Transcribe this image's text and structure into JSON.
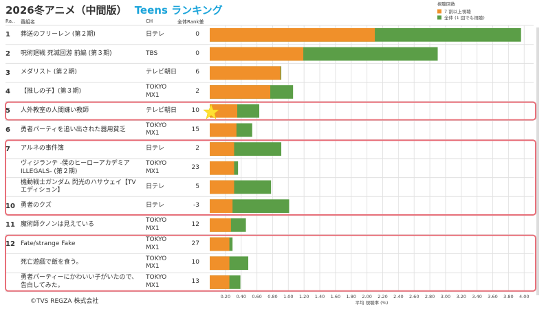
{
  "title": "2026冬アニメ（中間版）",
  "title_accent": "Teens ランキング",
  "columns": {
    "rank": "Ra..",
    "name": "番組名",
    "channel": "CH",
    "rank_diff": "全体Rank差"
  },
  "footer": "©TVS REGZA 株式会社",
  "chart_data": {
    "type": "bar",
    "orientation": "horizontal",
    "categories": [
      "葬送のフリーレン (第２期)",
      "呪術廻戦 死滅回游 前編 (第３期)",
      "メダリスト (第２期)",
      "【推しの子】(第３期)",
      "人外教室の人間嫌い教師",
      "勇者パーティを追い出された器用貧乏",
      "アルネの事件簿",
      "ヴィジランテ -僕のヒーローアカデミア ILLEGALS- (第２期)",
      "機動戦士ガンダム 閃光のハサウェイ【TVエディション】",
      "勇者のクズ",
      "魔術師クノンは見えている",
      "Fate/strange Fake",
      "死亡遊戯で飯を食う。",
      "勇者パーティーにかわいい子がいたので、告白してみた。"
    ],
    "ranks": [
      1,
      2,
      3,
      4,
      5,
      6,
      7,
      null,
      null,
      10,
      11,
      12,
      null,
      null
    ],
    "channels": [
      "日テレ",
      "TBS",
      "テレビ朝日",
      "TOKYO MX1",
      "テレビ朝日",
      "TOKYO MX1",
      "日テレ",
      "TOKYO MX1",
      "日テレ",
      "日テレ",
      "TOKYO MX1",
      "TOKYO MX1",
      "TOKYO MX1",
      "TOKYO MX1"
    ],
    "rank_diff": [
      0,
      0,
      6,
      2,
      10,
      15,
      2,
      23,
      5,
      -3,
      12,
      27,
      10,
      13
    ],
    "legend_title": "視聴回数",
    "series": [
      {
        "name": "全体 (1 回でも視聴)",
        "color": "#5b9e47",
        "values": [
          3.96,
          2.9,
          0.91,
          1.06,
          0.63,
          0.54,
          0.91,
          0.36,
          0.78,
          1.01,
          0.46,
          0.29,
          0.49,
          0.39
        ]
      },
      {
        "name": "7 割以上視聴",
        "color": "#f0902a",
        "values": [
          2.1,
          1.19,
          0.9,
          0.77,
          0.35,
          0.34,
          0.31,
          0.31,
          0.31,
          0.29,
          0.27,
          0.25,
          0.25,
          0.25
        ]
      }
    ],
    "x_label": "平均 視聴率 (%)",
    "xlim": [
      0,
      4.12
    ],
    "xticks": [
      {
        "value": 0.2,
        "label": "0.20"
      },
      {
        "value": 0.4,
        "label": "0.40"
      },
      {
        "value": 0.6,
        "label": "0.60"
      },
      {
        "value": 0.8,
        "label": "0.80"
      },
      {
        "value": 1,
        "label": "1.00"
      },
      {
        "value": 1.2,
        "label": "1.20"
      },
      {
        "value": 1.4,
        "label": "1.40"
      },
      {
        "value": 1.6,
        "label": "1.60"
      },
      {
        "value": 1.8,
        "label": "1.80"
      },
      {
        "value": 2,
        "label": "2.00"
      },
      {
        "value": 2.2,
        "label": "2.20"
      },
      {
        "value": 2.4,
        "label": "2.40"
      },
      {
        "value": 2.6,
        "label": "2.60"
      },
      {
        "value": 2.8,
        "label": "2.80"
      },
      {
        "value": 3,
        "label": "3.00"
      },
      {
        "value": 3.2,
        "label": "3.20"
      },
      {
        "value": 3.4,
        "label": "3.40"
      },
      {
        "value": 3.6,
        "label": "3.60"
      },
      {
        "value": 3.8,
        "label": "3.80"
      },
      {
        "value": 4,
        "label": "4.00"
      }
    ],
    "grid": true
  }
}
